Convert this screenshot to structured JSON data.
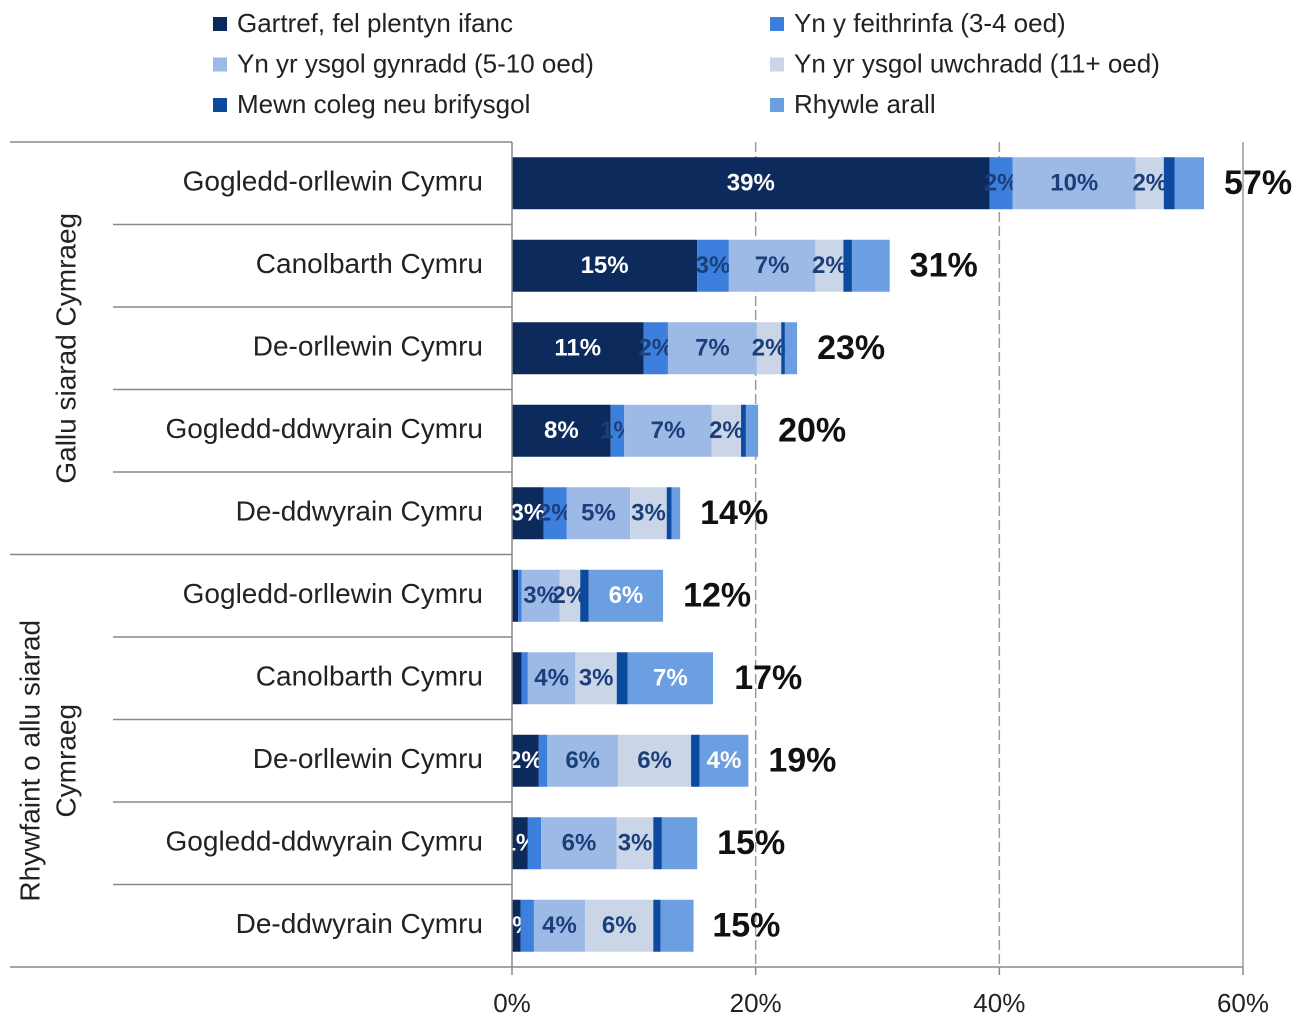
{
  "chart_data": {
    "type": "stacked-bar-horizontal",
    "groups": [
      {
        "label": [
          "Gallu siarad Cymraeg"
        ],
        "categories": [
          "Gogledd-orllewin Cymru",
          "Canolbarth Cymru",
          "De-orllewin Cymru",
          "Gogledd-ddwyrain Cymru",
          "De-ddwyrain Cymru"
        ]
      },
      {
        "label": [
          "Rhywfaint o allu siarad",
          "Cymraeg"
        ],
        "categories": [
          "Gogledd-orllewin Cymru",
          "Canolbarth Cymru",
          "De-orllewin Cymru",
          "Gogledd-ddwyrain Cymru",
          "De-ddwyrain Cymru"
        ]
      }
    ],
    "series": [
      {
        "name": "Gartref, fel plentyn ifanc",
        "color": "#0c2a5b",
        "values": [
          39.2,
          15.2,
          10.8,
          8.1,
          2.6,
          0.5,
          0.8,
          2.2,
          1.3,
          0.7
        ],
        "value_labels": [
          "39%",
          "15%",
          "11%",
          "8%",
          "3%",
          null,
          null,
          "2%",
          "1%",
          "1%"
        ]
      },
      {
        "name": "Yn y feithrinfa (3-4 oed)",
        "color": "#3d7fdc",
        "values": [
          1.9,
          2.6,
          2.0,
          1.1,
          1.9,
          0.3,
          0.5,
          0.7,
          1.1,
          1.1
        ],
        "value_labels": [
          "2%",
          "3%",
          "2%",
          "1%",
          "2%",
          null,
          null,
          null,
          null,
          null
        ]
      },
      {
        "name": "Yn yr ysgol gynradd (5-10 oed)",
        "color": "#9dbae6",
        "values": [
          10.1,
          7.1,
          7.3,
          7.2,
          5.2,
          3.1,
          3.9,
          5.8,
          6.2,
          4.2
        ],
        "value_labels": [
          "10%",
          "7%",
          "7%",
          "7%",
          "5%",
          "3%",
          "4%",
          "6%",
          "6%",
          "4%"
        ]
      },
      {
        "name": "Yn yr ysgol uwchradd (11+ oed)",
        "color": "#cad6e8",
        "values": [
          2.3,
          2.3,
          2.0,
          2.4,
          3.0,
          1.7,
          3.4,
          6.0,
          3.0,
          5.6
        ],
        "value_labels": [
          "2%",
          "2%",
          "2%",
          "2%",
          "3%",
          "2%",
          "3%",
          "6%",
          "3%",
          "6%"
        ]
      },
      {
        "name": "Mewn coleg neu brifysgol",
        "color": "#0b4a9e",
        "values": [
          0.9,
          0.7,
          0.3,
          0.4,
          0.4,
          0.7,
          0.9,
          0.7,
          0.7,
          0.6
        ],
        "value_labels": [
          null,
          null,
          null,
          null,
          null,
          null,
          null,
          null,
          null,
          null
        ]
      },
      {
        "name": "Rhywle arall",
        "color": "#6b9fe1",
        "values": [
          2.4,
          3.1,
          1.0,
          1.0,
          0.7,
          6.1,
          7.0,
          4.0,
          2.9,
          2.7
        ],
        "value_labels": [
          null,
          null,
          null,
          null,
          null,
          "6%",
          "7%",
          "4%",
          null,
          null
        ]
      }
    ],
    "totals": {
      "values": [
        56.8,
        31.0,
        23.4,
        20.2,
        13.8,
        12.4,
        16.6,
        19.4,
        15.2,
        14.8
      ],
      "value_labels": [
        "57%",
        "31%",
        "23%",
        "20%",
        "14%",
        "12%",
        "17%",
        "19%",
        "15%",
        "15%"
      ]
    },
    "xlim": [
      0,
      60
    ],
    "xticks": [
      {
        "value": 0,
        "label": "0%"
      },
      {
        "value": 20,
        "label": "20%"
      },
      {
        "value": 40,
        "label": "40%"
      },
      {
        "value": 60,
        "label": "60%"
      }
    ],
    "grid": true
  }
}
